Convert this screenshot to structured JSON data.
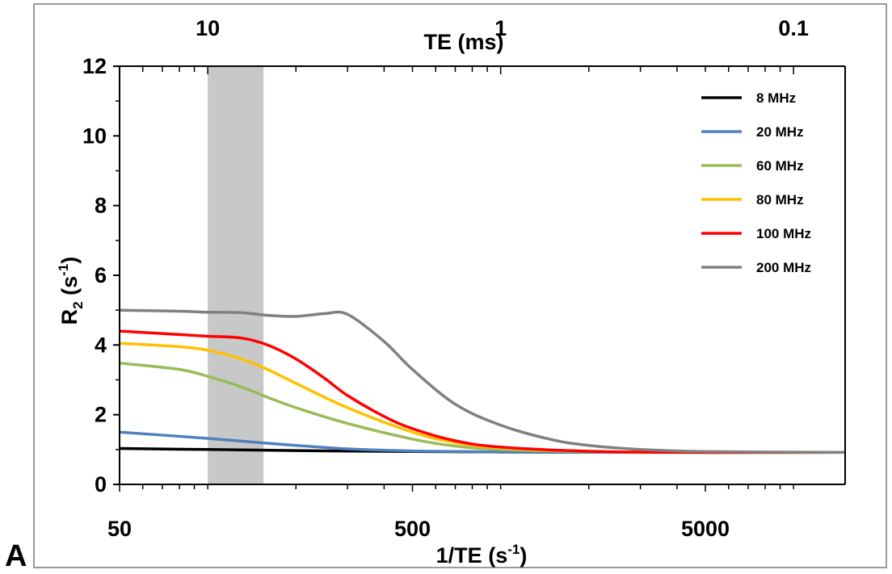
{
  "panel_label": "A",
  "chart_data": {
    "type": "line",
    "xlabel_main": "1/TE",
    "xlabel_unit_base": "s",
    "xlabel_unit_exp": "-1",
    "xlabel_top": "TE (ms)",
    "ylabel_main": "R",
    "ylabel_sub": "2",
    "ylabel_unit_base": "s",
    "ylabel_unit_exp": "-1",
    "x_scale": "log",
    "xlim": [
      50,
      15000
    ],
    "ylim": [
      0,
      12
    ],
    "x_ticks": [
      {
        "value": 50,
        "label": "50"
      },
      {
        "value": 500,
        "label": "500"
      },
      {
        "value": 5000,
        "label": "5000"
      }
    ],
    "top_ticks": [
      {
        "value": 100,
        "label": "10"
      },
      {
        "value": 1000,
        "label": "1"
      },
      {
        "value": 10000,
        "label": "0.1"
      }
    ],
    "y_ticks": [
      {
        "value": 0,
        "label": "0"
      },
      {
        "value": 2,
        "label": "2"
      },
      {
        "value": 4,
        "label": "4"
      },
      {
        "value": 6,
        "label": "6"
      },
      {
        "value": 8,
        "label": "8"
      },
      {
        "value": 10,
        "label": "10"
      },
      {
        "value": 12,
        "label": "12"
      }
    ],
    "shaded_region": {
      "x_start": 100,
      "x_end": 155,
      "color": "#c8c8c8"
    },
    "legend_position": "top-right",
    "grid": false,
    "series": [
      {
        "name": "8 MHz",
        "color": "#000000",
        "x": [
          50,
          100,
          200,
          400,
          1000,
          3000,
          15000
        ],
        "y": [
          1.03,
          1.0,
          0.97,
          0.95,
          0.93,
          0.92,
          0.92
        ]
      },
      {
        "name": "20 MHz",
        "color": "#4f81bd",
        "x": [
          50,
          100,
          150,
          200,
          300,
          500,
          1000,
          3000,
          15000
        ],
        "y": [
          1.5,
          1.32,
          1.2,
          1.12,
          1.02,
          0.96,
          0.93,
          0.92,
          0.92
        ]
      },
      {
        "name": "60 MHz",
        "color": "#9bbb59",
        "x": [
          50,
          80,
          100,
          130,
          160,
          200,
          300,
          500,
          700,
          1000,
          2000,
          4000,
          15000
        ],
        "y": [
          3.48,
          3.3,
          3.1,
          2.8,
          2.5,
          2.2,
          1.75,
          1.3,
          1.1,
          1.0,
          0.94,
          0.92,
          0.92
        ]
      },
      {
        "name": "80 MHz",
        "color": "#ffc000",
        "x": [
          50,
          80,
          100,
          130,
          160,
          200,
          300,
          500,
          700,
          1000,
          2000,
          4000,
          15000
        ],
        "y": [
          4.05,
          3.95,
          3.85,
          3.6,
          3.3,
          2.9,
          2.2,
          1.5,
          1.2,
          1.05,
          0.95,
          0.92,
          0.92
        ]
      },
      {
        "name": "100 MHz",
        "color": "#ff0000",
        "x": [
          50,
          80,
          100,
          130,
          160,
          200,
          250,
          300,
          400,
          500,
          700,
          1000,
          2000,
          4000,
          15000
        ],
        "y": [
          4.4,
          4.3,
          4.25,
          4.2,
          4.0,
          3.6,
          3.05,
          2.55,
          1.95,
          1.6,
          1.25,
          1.07,
          0.95,
          0.92,
          0.92
        ]
      },
      {
        "name": "200 MHz",
        "color": "#808080",
        "x": [
          50,
          80,
          100,
          130,
          160,
          200,
          250,
          300,
          400,
          500,
          700,
          1000,
          1500,
          2000,
          3000,
          5000,
          15000
        ],
        "y": [
          5.0,
          4.97,
          4.94,
          4.93,
          4.85,
          4.82,
          4.9,
          4.88,
          4.1,
          3.3,
          2.3,
          1.7,
          1.28,
          1.12,
          1.0,
          0.94,
          0.92
        ]
      }
    ]
  }
}
